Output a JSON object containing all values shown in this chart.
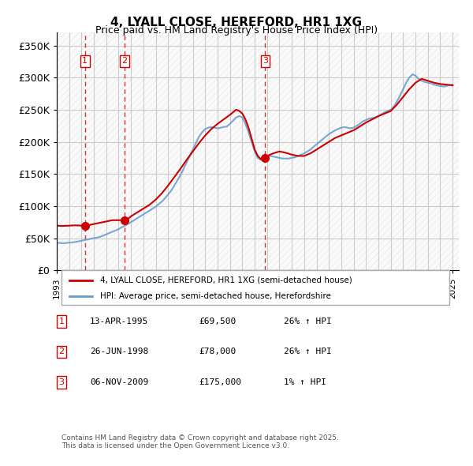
{
  "title": "4, LYALL CLOSE, HEREFORD, HR1 1XG",
  "subtitle": "Price paid vs. HM Land Registry's House Price Index (HPI)",
  "legend_line1": "4, LYALL CLOSE, HEREFORD, HR1 1XG (semi-detached house)",
  "legend_line2": "HPI: Average price, semi-detached house, Herefordshire",
  "sale_dates": [
    "13-APR-1995",
    "26-JUN-1998",
    "06-NOV-2009"
  ],
  "sale_prices": [
    69500,
    78000,
    175000
  ],
  "sale_years": [
    1995.28,
    1998.48,
    2009.84
  ],
  "sale_labels": [
    "1",
    "2",
    "3"
  ],
  "sale_pct": [
    "26% ↑ HPI",
    "26% ↑ HPI",
    "1% ↑ HPI"
  ],
  "ylabel": "",
  "ylim": [
    0,
    370000
  ],
  "yticks": [
    0,
    50000,
    100000,
    150000,
    200000,
    250000,
    300000,
    350000
  ],
  "ytick_labels": [
    "£0",
    "£50K",
    "£100K",
    "£150K",
    "£200K",
    "£250K",
    "£300K",
    "£350K"
  ],
  "xlim_start": 1993.0,
  "xlim_end": 2025.5,
  "line_color_red": "#cc0000",
  "line_color_blue": "#6699cc",
  "marker_color_red": "#cc0000",
  "hatch_color": "#cccccc",
  "grid_color": "#cccccc",
  "background_hatch": "#e8e8e8",
  "footnote": "Contains HM Land Registry data © Crown copyright and database right 2025.\nThis data is licensed under the Open Government Licence v3.0.",
  "hpi_years": [
    1993,
    1993.25,
    1993.5,
    1993.75,
    1994,
    1994.25,
    1994.5,
    1994.75,
    1995,
    1995.28,
    1995.5,
    1995.75,
    1996,
    1996.25,
    1996.5,
    1996.75,
    1997,
    1997.25,
    1997.5,
    1997.75,
    1998,
    1998.25,
    1998.48,
    1998.75,
    1999,
    1999.25,
    1999.5,
    1999.75,
    2000,
    2000.25,
    2000.5,
    2000.75,
    2001,
    2001.25,
    2001.5,
    2001.75,
    2002,
    2002.25,
    2002.5,
    2002.75,
    2003,
    2003.25,
    2003.5,
    2003.75,
    2004,
    2004.25,
    2004.5,
    2004.75,
    2005,
    2005.25,
    2005.5,
    2005.75,
    2006,
    2006.25,
    2006.5,
    2006.75,
    2007,
    2007.25,
    2007.5,
    2007.75,
    2008,
    2008.25,
    2008.5,
    2008.75,
    2009,
    2009.25,
    2009.5,
    2009.75,
    2009.84,
    2010,
    2010.25,
    2010.5,
    2010.75,
    2011,
    2011.25,
    2011.5,
    2011.75,
    2012,
    2012.25,
    2012.5,
    2012.75,
    2013,
    2013.25,
    2013.5,
    2013.75,
    2014,
    2014.25,
    2014.5,
    2014.75,
    2015,
    2015.25,
    2015.5,
    2015.75,
    2016,
    2016.25,
    2016.5,
    2016.75,
    2017,
    2017.25,
    2017.5,
    2017.75,
    2018,
    2018.25,
    2018.5,
    2018.75,
    2019,
    2019.25,
    2019.5,
    2019.75,
    2020,
    2020.25,
    2020.5,
    2020.75,
    2021,
    2021.25,
    2021.5,
    2021.75,
    2022,
    2022.25,
    2022.5,
    2022.75,
    2023,
    2023.25,
    2023.5,
    2023.75,
    2024,
    2024.25,
    2024.5,
    2024.75,
    2025
  ],
  "hpi_values": [
    43000,
    42500,
    42000,
    42500,
    43000,
    43500,
    44000,
    45000,
    46000,
    47000,
    48000,
    49000,
    50000,
    51000,
    52000,
    54000,
    56000,
    58000,
    60000,
    62000,
    64000,
    67000,
    69000,
    72000,
    75000,
    78000,
    81000,
    84000,
    87000,
    90000,
    93000,
    96000,
    99000,
    103000,
    107000,
    112000,
    118000,
    124000,
    132000,
    140000,
    148000,
    158000,
    168000,
    178000,
    188000,
    198000,
    208000,
    215000,
    220000,
    222000,
    223000,
    222000,
    221000,
    222000,
    223000,
    224000,
    228000,
    233000,
    238000,
    240000,
    238000,
    228000,
    215000,
    200000,
    185000,
    175000,
    172000,
    173000,
    175000,
    177000,
    178000,
    177000,
    176000,
    175000,
    174000,
    174000,
    174000,
    175000,
    176000,
    178000,
    180000,
    182000,
    185000,
    188000,
    192000,
    196000,
    200000,
    204000,
    208000,
    212000,
    215000,
    218000,
    220000,
    222000,
    223000,
    222000,
    221000,
    222000,
    225000,
    228000,
    232000,
    234000,
    236000,
    237000,
    238000,
    240000,
    243000,
    246000,
    248000,
    250000,
    255000,
    263000,
    272000,
    282000,
    292000,
    300000,
    305000,
    303000,
    298000,
    295000,
    293000,
    292000,
    291000,
    289000,
    288000,
    287000,
    286000,
    287000,
    288000,
    289000
  ],
  "red_years": [
    1993,
    1993.5,
    1994,
    1994.5,
    1995,
    1995.28,
    1995.5,
    1996,
    1996.5,
    1997,
    1997.5,
    1998,
    1998.48,
    1998.75,
    1999,
    1999.5,
    2000,
    2000.5,
    2001,
    2001.5,
    2002,
    2002.5,
    2003,
    2003.5,
    2004,
    2004.5,
    2005,
    2005.5,
    2006,
    2006.5,
    2007,
    2007.25,
    2007.5,
    2007.75,
    2008,
    2008.25,
    2008.5,
    2008.75,
    2009,
    2009.25,
    2009.5,
    2009.84,
    2010,
    2010.5,
    2011,
    2011.5,
    2012,
    2012.5,
    2013,
    2013.5,
    2014,
    2014.5,
    2015,
    2015.5,
    2016,
    2016.5,
    2017,
    2017.5,
    2018,
    2018.5,
    2019,
    2019.5,
    2020,
    2020.5,
    2021,
    2021.5,
    2022,
    2022.5,
    2023,
    2023.5,
    2024,
    2024.5,
    2025
  ],
  "red_values": [
    69500,
    69000,
    69500,
    70000,
    69500,
    69500,
    70000,
    72000,
    74000,
    76000,
    78000,
    78000,
    78000,
    80000,
    84000,
    90000,
    96000,
    102000,
    110000,
    120000,
    132000,
    145000,
    158000,
    172000,
    185000,
    198000,
    210000,
    220000,
    228000,
    235000,
    242000,
    246000,
    250000,
    248000,
    244000,
    235000,
    222000,
    205000,
    188000,
    178000,
    173000,
    175000,
    178000,
    182000,
    185000,
    183000,
    180000,
    178000,
    178000,
    182000,
    188000,
    194000,
    200000,
    206000,
    210000,
    214000,
    218000,
    224000,
    230000,
    235000,
    240000,
    244000,
    248000,
    258000,
    270000,
    282000,
    292000,
    298000,
    295000,
    292000,
    290000,
    289000,
    288000
  ]
}
